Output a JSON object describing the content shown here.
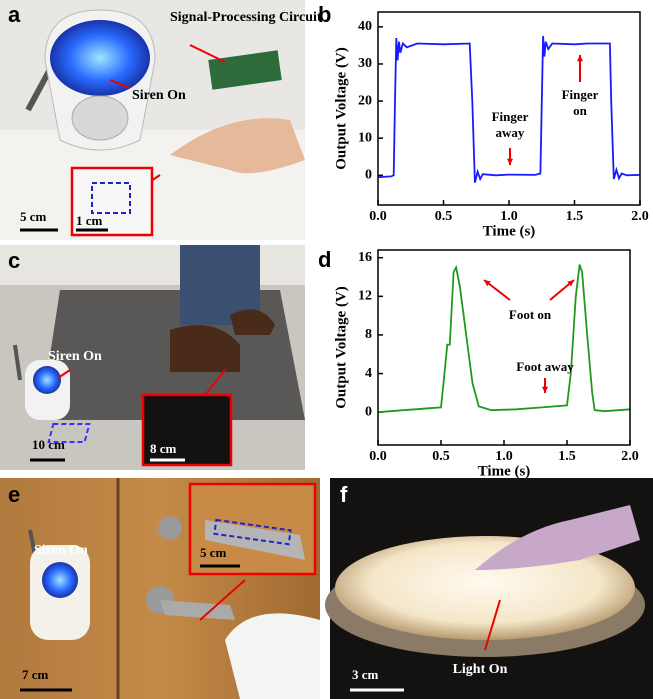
{
  "chart_data": [
    {
      "type": "line",
      "label": "b",
      "xlabel": "Time (s)",
      "ylabel": "Output Voltage (V)",
      "xlim": [
        0,
        2
      ],
      "ylim": [
        -8,
        44
      ],
      "xticks": [
        {
          "value": 0,
          "label": "0.0"
        },
        {
          "value": 0.5,
          "label": "0.5"
        },
        {
          "value": 1,
          "label": "1.0"
        },
        {
          "value": 1.5,
          "label": "1.5"
        },
        {
          "value": 2,
          "label": "2.0"
        }
      ],
      "yticks": [
        0,
        10,
        20,
        30,
        40
      ],
      "annotations": [
        [
          "Finger",
          "away"
        ],
        [
          "Finger",
          "on"
        ]
      ],
      "series": [
        {
          "color": "#1a1aff",
          "x": [
            0,
            0.1,
            0.12,
            0.13,
            0.14,
            0.15,
            0.16,
            0.17,
            0.19,
            0.22,
            0.3,
            0.5,
            0.7,
            0.72,
            0.74,
            0.76,
            0.78,
            0.8,
            0.9,
            1.0,
            1.2,
            1.24,
            1.25,
            1.26,
            1.27,
            1.28,
            1.3,
            1.33,
            1.5,
            1.6,
            1.77,
            1.78,
            1.8,
            1.82,
            1.84,
            1.86,
            1.9,
            2.0
          ],
          "values": [
            -0.5,
            -0.3,
            0,
            20,
            37,
            31,
            36,
            33,
            35.5,
            34.5,
            35.5,
            35.3,
            35.5,
            20,
            -2,
            1,
            -1,
            0.3,
            0,
            0.2,
            0.1,
            0.5,
            20,
            37.5,
            32,
            36,
            34,
            35.5,
            35.3,
            35.5,
            35.5,
            20,
            -1,
            1.5,
            -0.8,
            0.5,
            0,
            0.1
          ]
        }
      ]
    },
    {
      "type": "line",
      "label": "d",
      "xlabel": "Time (s)",
      "ylabel": "Output Voltage (V)",
      "xlim": [
        0,
        2
      ],
      "ylim": [
        -3.4,
        16.8
      ],
      "xticks": [
        {
          "value": 0,
          "label": "0.0"
        },
        {
          "value": 0.5,
          "label": "0.5"
        },
        {
          "value": 1,
          "label": "1.0"
        },
        {
          "value": 1.5,
          "label": "1.5"
        },
        {
          "value": 2,
          "label": "2.0"
        }
      ],
      "yticks": [
        0,
        4,
        8,
        12,
        16
      ],
      "annotations": [
        [
          "Foot on"
        ],
        [
          "Foot away"
        ]
      ],
      "series": [
        {
          "color": "#1f9a1f",
          "x": [
            0,
            0.2,
            0.4,
            0.5,
            0.52,
            0.55,
            0.57,
            0.6,
            0.62,
            0.65,
            0.7,
            0.75,
            0.8,
            0.9,
            1.1,
            1.3,
            1.5,
            1.53,
            1.57,
            1.6,
            1.62,
            1.66,
            1.7,
            1.72,
            1.8,
            2.0
          ],
          "values": [
            0,
            0.2,
            0.4,
            0.5,
            3,
            7,
            7,
            14.5,
            15,
            13,
            8,
            3,
            0.6,
            0.2,
            0.3,
            0.5,
            0.7,
            4,
            12,
            15.3,
            14.5,
            8,
            2,
            0.2,
            0.1,
            0.3
          ]
        }
      ]
    }
  ],
  "panels": {
    "a": {
      "label": "a",
      "circuit": "Signal-Processing Circuit",
      "siren": "Siren On",
      "scale": "5 cm",
      "inset_scale": "1 cm"
    },
    "c": {
      "label": "c",
      "siren": "Siren On",
      "scale": "10 cm",
      "inset_scale": "8 cm"
    },
    "e": {
      "label": "e",
      "siren": "Siren On",
      "scale": "7 cm",
      "inset_scale": "5 cm"
    },
    "f": {
      "label": "f",
      "scale": "3 cm",
      "light": "Light On"
    }
  }
}
